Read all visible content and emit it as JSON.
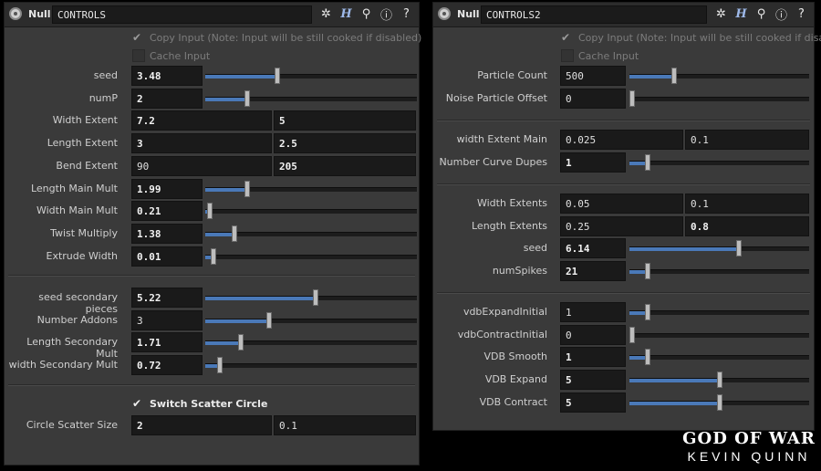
{
  "panel1": {
    "header": {
      "type": "Null",
      "name": "CONTROLS"
    },
    "copy_input": {
      "label": "Copy Input (Note: Input will be still cooked if disabled)",
      "checked": true
    },
    "cache_input": {
      "label": "Cache Input",
      "checked": false
    },
    "sliders_a": [
      {
        "label": "seed",
        "value": "3.48",
        "bold": true,
        "level": 0.34
      },
      {
        "label": "numP",
        "value": "2",
        "bold": true,
        "level": 0.2
      },
      {
        "label": "Width Extent",
        "pair": [
          "7.2",
          "5"
        ],
        "bold": true
      },
      {
        "label": "Length Extent",
        "pair": [
          "3",
          "2.5"
        ],
        "bold": true
      },
      {
        "label": "Bend Extent",
        "pair": [
          "90",
          "205"
        ],
        "bold": false,
        "bold2": true
      },
      {
        "label": "Length Main Mult",
        "value": "1.99",
        "bold": true,
        "level": 0.2
      },
      {
        "label": "Width Main Mult",
        "value": "0.21",
        "bold": true,
        "level": 0.02
      },
      {
        "label": "Twist Multiply",
        "value": "1.38",
        "bold": true,
        "level": 0.14
      },
      {
        "label": "Extrude Width",
        "value": "0.01",
        "bold": true,
        "level": 0.04
      }
    ],
    "sliders_b": [
      {
        "label": "seed secondary pieces",
        "value": "5.22",
        "bold": true,
        "level": 0.52
      },
      {
        "label": "Number Addons",
        "value": "3",
        "bold": false,
        "level": 0.3
      },
      {
        "label": "Length Secondary Mult",
        "value": "1.71",
        "bold": true,
        "level": 0.17
      },
      {
        "label": "width Secondary Mult",
        "value": "0.72",
        "bold": true,
        "level": 0.07
      }
    ],
    "switch_scatter": {
      "label": "Switch Scatter Circle",
      "checked": true
    },
    "circle_scatter": {
      "label": "Circle Scatter Size",
      "pair": [
        "2",
        "0.1"
      ]
    }
  },
  "panel2": {
    "header": {
      "type": "Null",
      "name": "CONTROLS2"
    },
    "copy_input": {
      "label": "Copy Input (Note: Input will be still cooked if disab...",
      "checked": true
    },
    "cache_input": {
      "label": "Cache Input",
      "checked": false
    },
    "group1": [
      {
        "label": "Particle Count",
        "value": "500",
        "bold": false,
        "level": 0.25
      },
      {
        "label": "Noise Particle Offset",
        "value": "0",
        "bold": false,
        "level": 0.0
      }
    ],
    "group2": [
      {
        "label": "width Extent Main",
        "pair": [
          "0.025",
          "0.1"
        ],
        "bold": false
      },
      {
        "label": "Number Curve Dupes",
        "value": "1",
        "bold": true,
        "level": 0.1
      }
    ],
    "group3": [
      {
        "label": "Width Extents",
        "pair": [
          "0.05",
          "0.1"
        ],
        "bold": false
      },
      {
        "label": "Length Extents",
        "pair": [
          "0.25",
          "0.8"
        ],
        "bold": false,
        "bold2": true
      },
      {
        "label": "seed",
        "value": "6.14",
        "bold": true,
        "level": 0.61
      },
      {
        "label": "numSpikes",
        "value": "21",
        "bold": true,
        "level": 0.1
      }
    ],
    "group4": [
      {
        "label": "vdbExpandInitial",
        "value": "1",
        "bold": false,
        "level": 0.1
      },
      {
        "label": "vdbContractInitial",
        "value": "0",
        "bold": false,
        "level": 0.0
      },
      {
        "label": "VDB Smooth",
        "value": "1",
        "bold": true,
        "level": 0.1
      },
      {
        "label": "VDB Expand",
        "value": "5",
        "bold": true,
        "level": 0.5
      },
      {
        "label": "VDB Contract",
        "value": "5",
        "bold": true,
        "level": 0.5
      }
    ]
  },
  "header_icons": [
    "gear-icon",
    "help-h-icon",
    "zoom-icon",
    "info-icon",
    "question-icon"
  ],
  "logo": {
    "line1": "GOD OF WAR",
    "line2": "KEVIN QUINN"
  },
  "colors": {
    "accent": "#4a79b8",
    "panel": "#3a3a3a",
    "field": "#1a1a1a"
  }
}
